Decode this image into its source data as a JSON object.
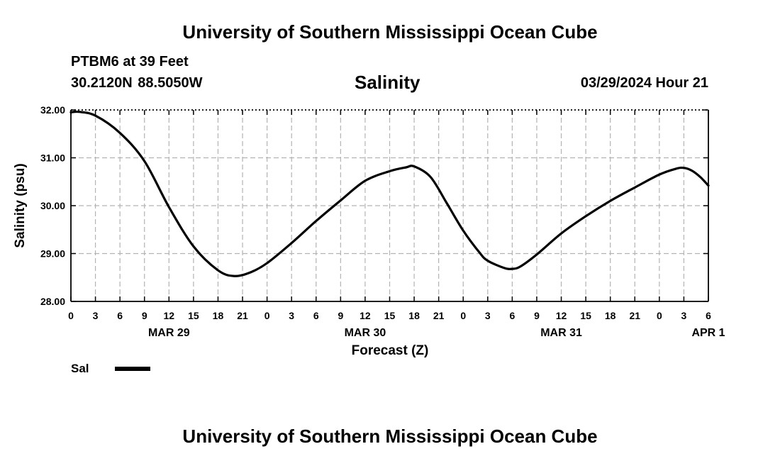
{
  "header": {
    "title": "University of Southern Mississippi Ocean Cube",
    "station": "PTBM6 at 39 Feet",
    "coordinates": "30.2120N  88.5050W",
    "timestamp": "03/29/2024 Hour 21"
  },
  "footer": {
    "title": "University of Southern Mississippi Ocean Cube"
  },
  "legend": {
    "label": "Sal",
    "color": "#000000"
  },
  "chart_data": {
    "type": "line",
    "title": "Salinity",
    "xlabel": "Forecast (Z)",
    "ylabel": "Salinity (psu)",
    "ylim": [
      28.0,
      32.0
    ],
    "y_ticks": [
      "28.00",
      "29.00",
      "30.00",
      "31.00",
      "32.00"
    ],
    "x_unit": "hours from 0Z MAR 29",
    "xlim": [
      0,
      78
    ],
    "x_tick_hours": [
      0,
      3,
      6,
      9,
      12,
      15,
      18,
      21,
      24,
      27,
      30,
      33,
      36,
      39,
      42,
      45,
      48,
      51,
      54,
      57,
      60,
      63,
      66,
      69,
      72,
      75,
      78
    ],
    "x_tick_labels": [
      "0",
      "3",
      "6",
      "9",
      "12",
      "15",
      "18",
      "21",
      "0",
      "3",
      "6",
      "9",
      "12",
      "15",
      "18",
      "21",
      "0",
      "3",
      "6",
      "9",
      "12",
      "15",
      "18",
      "21",
      "0",
      "3",
      "6"
    ],
    "day_labels": [
      {
        "label": "MAR 29",
        "hour": 12
      },
      {
        "label": "MAR 30",
        "hour": 36
      },
      {
        "label": "MAR 31",
        "hour": 60
      },
      {
        "label": "APR 1",
        "hour": 78
      }
    ],
    "grid": true,
    "series": [
      {
        "name": "Sal",
        "x": [
          0,
          1,
          3,
          6,
          9,
          12,
          15,
          18,
          20,
          22,
          24,
          27,
          30,
          33,
          36,
          39,
          41,
          42,
          44,
          46,
          48,
          50,
          51,
          53,
          54,
          55,
          57,
          60,
          63,
          66,
          69,
          72,
          74,
          75,
          76,
          77,
          78
        ],
        "values": [
          31.95,
          31.96,
          31.88,
          31.52,
          30.93,
          29.97,
          29.15,
          28.65,
          28.53,
          28.61,
          28.8,
          29.22,
          29.68,
          30.11,
          30.52,
          30.72,
          30.8,
          30.82,
          30.6,
          30.05,
          29.48,
          29.02,
          28.85,
          28.7,
          28.68,
          28.73,
          28.98,
          29.42,
          29.78,
          30.1,
          30.38,
          30.65,
          30.77,
          30.79,
          30.73,
          30.6,
          30.42
        ]
      }
    ]
  }
}
